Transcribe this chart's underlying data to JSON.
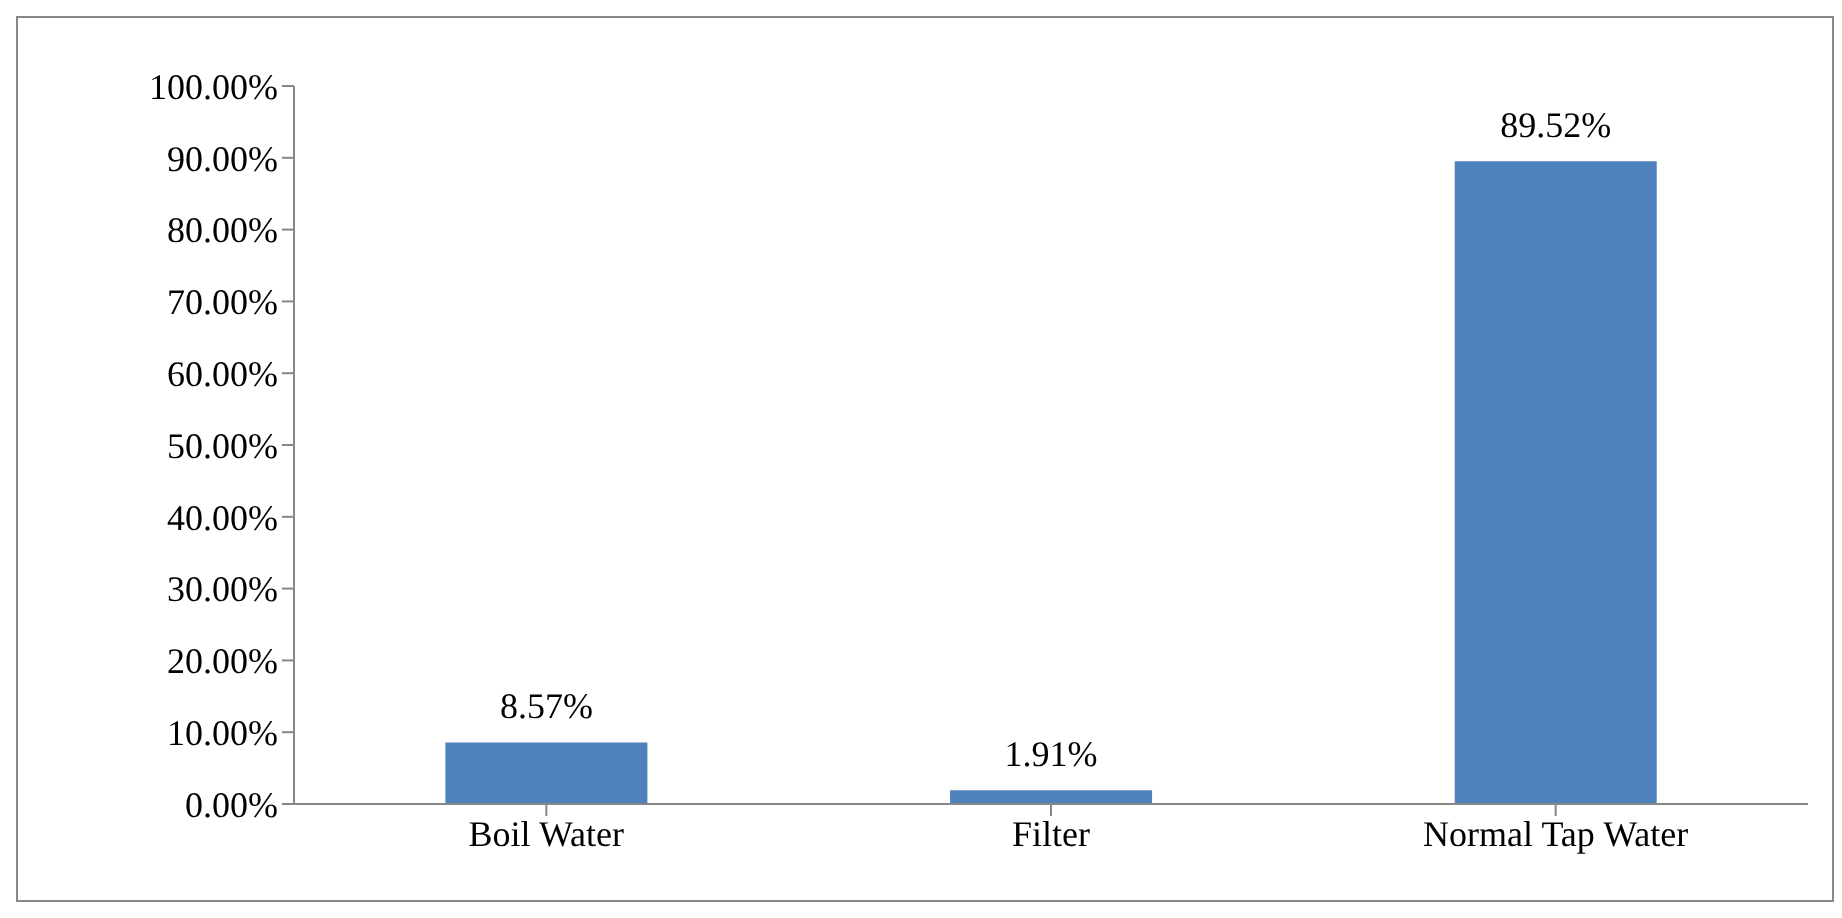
{
  "chart_data": {
    "type": "bar",
    "categories": [
      "Boil Water",
      "Filter",
      "Normal Tap Water"
    ],
    "values": [
      8.57,
      1.91,
      89.52
    ],
    "value_labels": [
      "8.57%",
      "1.91%",
      "89.52%"
    ],
    "color": "#4f81bd",
    "ylim": [
      0,
      100
    ],
    "yticks": [
      {
        "value": 0,
        "label": "0.00%"
      },
      {
        "value": 10,
        "label": "10.00%"
      },
      {
        "value": 20,
        "label": "20.00%"
      },
      {
        "value": 30,
        "label": "30.00%"
      },
      {
        "value": 40,
        "label": "40.00%"
      },
      {
        "value": 50,
        "label": "50.00%"
      },
      {
        "value": 60,
        "label": "60.00%"
      },
      {
        "value": 70,
        "label": "70.00%"
      },
      {
        "value": 80,
        "label": "80.00%"
      },
      {
        "value": 90,
        "label": "90.00%"
      },
      {
        "value": 100,
        "label": "100.00%"
      }
    ],
    "grid": false,
    "legend": false
  }
}
